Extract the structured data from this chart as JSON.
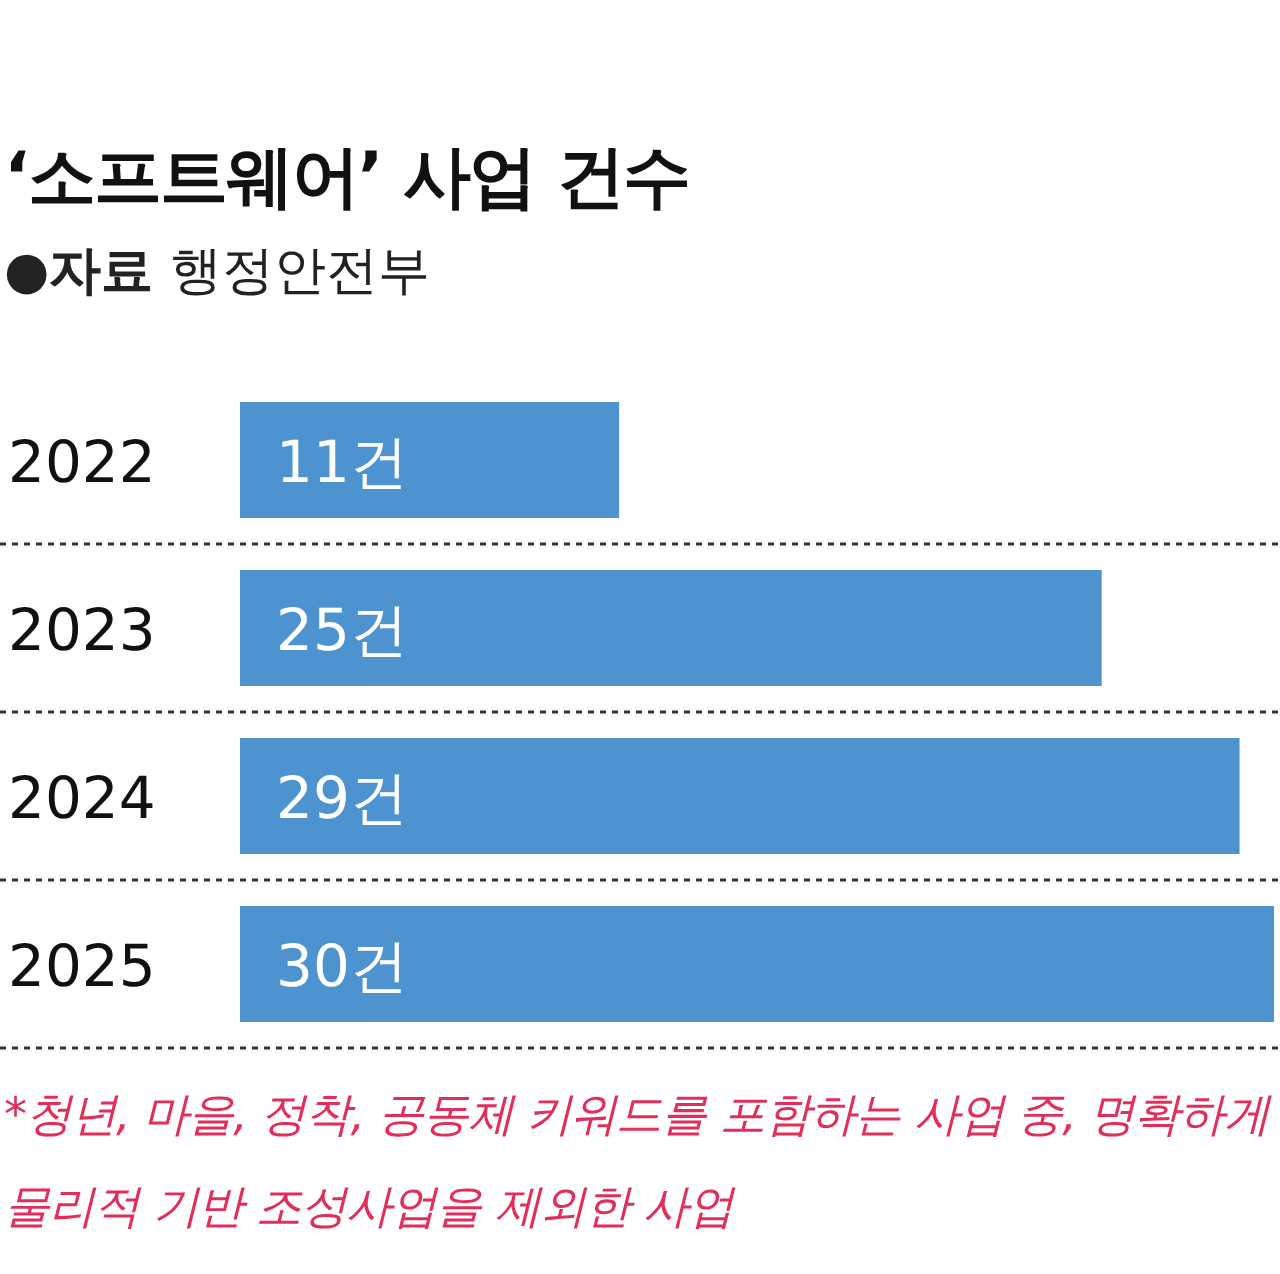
{
  "chart_data": {
    "type": "bar",
    "orientation": "horizontal",
    "title": "‘소프트웨어’ 사업 건수",
    "subtitle": "●**자료** 행정안전부",
    "categories": [
      "2022",
      "2023",
      "2024",
      "2025"
    ],
    "values": [
      11,
      25,
      29,
      30
    ],
    "color": "#4d93d0",
    "value_labels": [
      "11건",
      "25건",
      "29건",
      "30건"
    ],
    "annotations": [
      "*청년, 마을, 정착, 공동체 키워드를 포함하는 사업 중, 명확하게 물리적 기반 조성사업을 제외한 사업"
    ]
  }
}
